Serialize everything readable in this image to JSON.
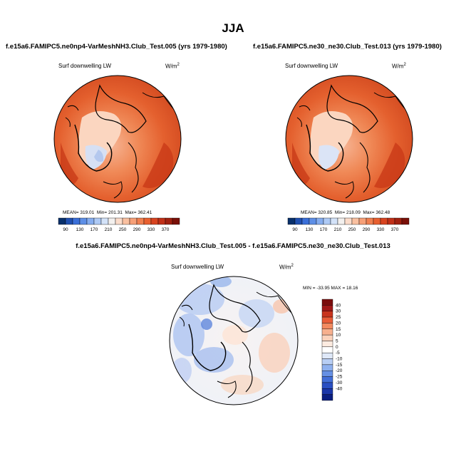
{
  "page_title": "JJA",
  "chart_data": [
    {
      "type": "heatmap",
      "projection": "north-polar-stereographic",
      "title": "f.e15a6.FAMIPC5.ne0np4-VarMeshNH3.Club_Test.005 (yrs 1979-1980)",
      "variable": "Surf downwelling LW",
      "units_base": "W/m",
      "units_exp": "2",
      "stats": {
        "mean_label": "MEAN=",
        "mean": "319.01",
        "min_label": "Min=",
        "min": "201.31",
        "max_label": "Max=",
        "max": "362.41"
      },
      "colorbar_ticks": [
        "90",
        "130",
        "170",
        "210",
        "250",
        "290",
        "330",
        "370"
      ],
      "colorbar_colors": [
        "#08306b",
        "#2050b0",
        "#3a6fd8",
        "#5e8fe6",
        "#86adef",
        "#aecaf5",
        "#d3e2f8",
        "#f3f0ee",
        "#fbdccb",
        "#f9c0a0",
        "#f6a078",
        "#f08050",
        "#e86030",
        "#d84420",
        "#c03018",
        "#a02010",
        "#7a1008"
      ]
    },
    {
      "type": "heatmap",
      "projection": "north-polar-stereographic",
      "title": "f.e15a6.FAMIPC5.ne30_ne30.Club_Test.013 (yrs 1979-1980)",
      "variable": "Surf downwelling LW",
      "units_base": "W/m",
      "units_exp": "2",
      "stats": {
        "mean_label": "MEAN=",
        "mean": "320.85",
        "min_label": "Min=",
        "min": "218.09",
        "max_label": "Max=",
        "max": "362.48"
      },
      "colorbar_ticks": [
        "90",
        "130",
        "170",
        "210",
        "250",
        "290",
        "330",
        "370"
      ],
      "colorbar_colors": [
        "#08306b",
        "#2050b0",
        "#3a6fd8",
        "#5e8fe6",
        "#86adef",
        "#aecaf5",
        "#d3e2f8",
        "#f3f0ee",
        "#fbdccb",
        "#f9c0a0",
        "#f6a078",
        "#f08050",
        "#e86030",
        "#d84420",
        "#c03018",
        "#a02010",
        "#7a1008"
      ]
    },
    {
      "type": "heatmap",
      "projection": "north-polar-stereographic",
      "title": "f.e15a6.FAMIPC5.ne0np4-VarMeshNH3.Club_Test.005 - f.e15a6.FAMIPC5.ne30_ne30.Club_Test.013",
      "variable": "Surf downwelling LW",
      "units_base": "W/m",
      "units_exp": "2",
      "stats_text": "MIN = -33.95 MAX =  18.16",
      "colorbar_ticks": [
        "40",
        "30",
        "25",
        "20",
        "15",
        "10",
        "5",
        "0",
        "-5",
        "-10",
        "-15",
        "-20",
        "-25",
        "-30",
        "-40"
      ],
      "colorbar_colors": [
        "#7a0c0c",
        "#a01818",
        "#c8341e",
        "#e85c38",
        "#f28a60",
        "#f7b08e",
        "#fbd2bc",
        "#fdebe0",
        "#ffffff",
        "#dfe8f8",
        "#b8cef4",
        "#8eb0ee",
        "#6690e4",
        "#426ed8",
        "#2a4fc2",
        "#1a36a8",
        "#0a1e80"
      ]
    }
  ]
}
